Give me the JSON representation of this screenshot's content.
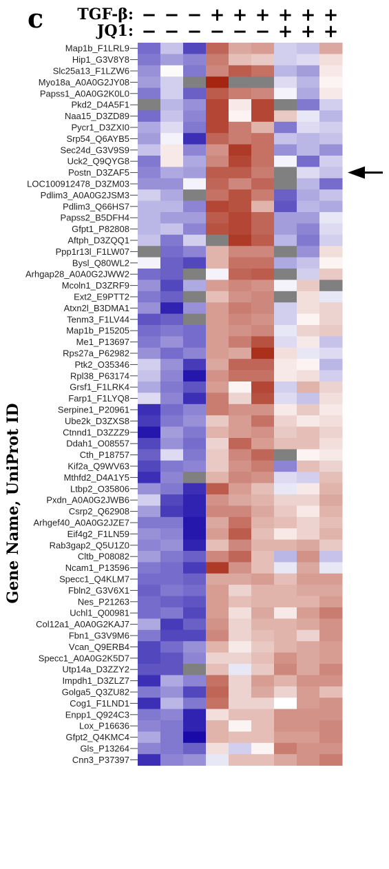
{
  "chart_data": {
    "type": "heatmap",
    "panel_label": "c",
    "ylabel": "Gene Name, UniProt ID",
    "treatments": [
      {
        "label": "TGF-β:",
        "marks": [
          "−",
          "−",
          "−",
          "+",
          "+",
          "+",
          "+",
          "+",
          "+"
        ]
      },
      {
        "label": "JQ1:",
        "marks": [
          "−",
          "−",
          "−",
          "−",
          "−",
          "−",
          "+",
          "+",
          "+"
        ]
      }
    ],
    "color_scale": {
      "low": "#1a0aa8",
      "mid": "#ffffff",
      "high": "#a52510",
      "missing": "#808080"
    },
    "highlighted_row": "Postn_D3ZAF5",
    "rows": [
      {
        "label": "Map1b_F1LRL9",
        "values": [
          -0.6,
          -0.25,
          -0.75,
          0.7,
          0.4,
          0.45,
          -0.2,
          -0.25,
          0.4
        ]
      },
      {
        "label": "Hip1_G3V8Y8",
        "values": [
          -0.55,
          -0.4,
          -0.5,
          0.6,
          0.3,
          0.25,
          -0.2,
          -0.15,
          0.15
        ]
      },
      {
        "label": "Slc25a13_F1LZW6",
        "values": [
          -0.45,
          0.02,
          -0.55,
          0.55,
          0.75,
          0.65,
          -0.3,
          -0.4,
          0.1
        ]
      },
      {
        "label": "Myo18a_A0A0G2JY08",
        "values": [
          -0.4,
          -0.2,
          null,
          1.0,
          null,
          null,
          -0.15,
          -0.3,
          0.05
        ]
      },
      {
        "label": "Papss1_A0A0G2K0L0",
        "values": [
          -0.55,
          -0.2,
          -0.65,
          0.75,
          0.6,
          0.55,
          -0.05,
          -0.35,
          0.1
        ]
      },
      {
        "label": "Pkd2_D4A5F1",
        "values": [
          null,
          -0.3,
          -0.45,
          0.85,
          0.1,
          0.85,
          null,
          -0.55,
          -0.2
        ]
      },
      {
        "label": "Naa15_D3ZD89",
        "values": [
          -0.6,
          -0.25,
          -0.5,
          0.85,
          0.05,
          0.85,
          0.25,
          -0.1,
          -0.3
        ]
      },
      {
        "label": "Pycr1_D3ZXI0",
        "values": [
          -0.35,
          -0.15,
          -0.55,
          0.85,
          0.6,
          0.35,
          -0.55,
          -0.15,
          -0.2
        ]
      },
      {
        "label": "Srp54_Q6AYB5",
        "values": [
          -0.4,
          -0.05,
          -0.85,
          0.7,
          0.6,
          0.65,
          -0.25,
          -0.3,
          -0.25
        ]
      },
      {
        "label": "Sec24d_G3V9S9",
        "values": [
          -0.25,
          0.1,
          -0.5,
          0.5,
          0.9,
          0.65,
          -0.45,
          -0.3,
          -0.45
        ]
      },
      {
        "label": "Uck2_Q9QYG8",
        "values": [
          -0.55,
          0.1,
          -0.35,
          0.55,
          0.85,
          0.65,
          -0.05,
          -0.6,
          -0.2
        ]
      },
      {
        "label": "Postn_D3ZAF5",
        "values": [
          -0.5,
          -0.35,
          -0.4,
          0.75,
          0.75,
          0.6,
          null,
          -0.15,
          -0.25
        ]
      },
      {
        "label": "LOC100912478_D3ZM03",
        "values": [
          -0.45,
          -0.45,
          -0.05,
          0.7,
          0.55,
          0.7,
          null,
          -0.3,
          -0.6
        ]
      },
      {
        "label": "Pdlim3_A0A0G2JSM3",
        "values": [
          -0.2,
          -0.35,
          null,
          0.65,
          0.8,
          0.6,
          -0.65,
          -0.35,
          -0.25
        ]
      },
      {
        "label": "Pdlim3_Q66HS7",
        "values": [
          -0.3,
          -0.3,
          -0.5,
          0.85,
          0.8,
          0.35,
          -0.7,
          -0.3,
          -0.35
        ]
      },
      {
        "label": "Papss2_B5DFH4",
        "values": [
          -0.3,
          -0.4,
          -0.4,
          0.75,
          0.85,
          0.7,
          -0.4,
          -0.4,
          -0.1
        ]
      },
      {
        "label": "Gfpt1_P82808",
        "values": [
          -0.3,
          -0.25,
          -0.5,
          0.8,
          0.85,
          0.7,
          -0.4,
          -0.5,
          -0.15
        ]
      },
      {
        "label": "Aftph_D3ZQQ1",
        "values": [
          -0.25,
          -0.55,
          -0.2,
          null,
          0.9,
          0.75,
          -0.3,
          -0.55,
          -0.2
        ]
      },
      {
        "label": "Ppp1r13l_F1LW07",
        "values": [
          null,
          -0.6,
          -0.5,
          0.35,
          0.55,
          0.55,
          null,
          -0.45,
          0.15
        ]
      },
      {
        "label": "Bysl_Q80WL2",
        "values": [
          -0.05,
          -0.65,
          -0.75,
          0.35,
          0.65,
          0.65,
          -0.35,
          -0.25,
          0.05
        ]
      },
      {
        "label": "Arhgap28_A0A0G2JWW2",
        "values": [
          -0.6,
          -0.65,
          null,
          -0.05,
          0.7,
          0.75,
          null,
          -0.2,
          0.25
        ]
      },
      {
        "label": "Mcoln1_D3ZRF9",
        "values": [
          -0.45,
          -0.75,
          -0.35,
          0.45,
          0.55,
          0.5,
          -0.05,
          0.25,
          null
        ]
      },
      {
        "label": "Ext2_E9PTT2",
        "values": [
          -0.55,
          -0.65,
          null,
          0.3,
          0.5,
          0.55,
          null,
          0.15,
          -0.1
        ]
      },
      {
        "label": "Atxn2l_B3DMA1",
        "values": [
          -0.45,
          -0.9,
          -0.45,
          0.45,
          0.6,
          0.55,
          -0.2,
          0.15,
          0.2
        ]
      },
      {
        "label": "Tenm3_F1LV44",
        "values": [
          -0.7,
          -0.65,
          null,
          0.45,
          0.55,
          0.5,
          -0.2,
          0.05,
          0.2
        ]
      },
      {
        "label": "Map1b_P15205",
        "values": [
          -0.6,
          -0.55,
          -0.6,
          0.45,
          0.5,
          0.55,
          -0.1,
          0.2,
          0.25
        ]
      },
      {
        "label": "Me1_P13697",
        "values": [
          -0.55,
          -0.45,
          -0.6,
          0.45,
          0.6,
          0.8,
          -0.15,
          0.1,
          -0.25
        ]
      },
      {
        "label": "Rps27a_P62982",
        "values": [
          -0.45,
          -0.6,
          -0.5,
          0.45,
          0.4,
          0.95,
          0.15,
          -0.1,
          -0.15
        ]
      },
      {
        "label": "Ptk2_O35346",
        "values": [
          -0.2,
          -0.45,
          -0.8,
          0.4,
          0.7,
          0.7,
          0.1,
          0.05,
          -0.3
        ]
      },
      {
        "label": "Rpl38_P63174",
        "values": [
          -0.25,
          -0.5,
          -0.95,
          0.5,
          0.65,
          0.65,
          0.1,
          0.15,
          -0.2
        ]
      },
      {
        "label": "Grsf1_F1LRK4",
        "values": [
          -0.35,
          -0.55,
          -0.7,
          0.45,
          0.05,
          0.85,
          -0.2,
          0.35,
          0.2
        ]
      },
      {
        "label": "Farp1_F1LYQ8",
        "values": [
          -0.15,
          -0.5,
          -0.85,
          0.6,
          0.2,
          0.8,
          -0.15,
          -0.25,
          0.15
        ]
      },
      {
        "label": "Serpine1_P20961",
        "values": [
          -0.85,
          -0.6,
          -0.5,
          0.6,
          0.5,
          0.5,
          0.1,
          0.25,
          0.1
        ]
      },
      {
        "label": "Ube2k_D3ZXS8",
        "values": [
          -0.8,
          -0.55,
          -0.45,
          0.25,
          0.45,
          0.65,
          0.2,
          0.1,
          0.15
        ]
      },
      {
        "label": "Ctnnd1_D3ZZZ9",
        "values": [
          -0.95,
          -0.4,
          -0.55,
          0.35,
          0.45,
          0.5,
          0.25,
          0.3,
          0.2
        ]
      },
      {
        "label": "Ddah1_O08557",
        "values": [
          -0.75,
          -0.45,
          -0.6,
          0.2,
          0.7,
          0.45,
          0.3,
          0.3,
          0.15
        ]
      },
      {
        "label": "Cth_P18757",
        "values": [
          -0.65,
          -0.15,
          -0.55,
          0.25,
          0.55,
          0.7,
          null,
          0.05,
          0.1
        ]
      },
      {
        "label": "Kif2a_Q9WV63",
        "values": [
          -0.75,
          -0.55,
          -0.5,
          0.25,
          0.5,
          0.6,
          -0.5,
          0.3,
          0.2
        ]
      },
      {
        "label": "Mthfd2_D4A1Y5",
        "values": [
          -0.85,
          -0.5,
          null,
          0.35,
          0.55,
          0.5,
          -0.15,
          -0.2,
          0.3
        ]
      },
      {
        "label": "Ltbp2_O35806",
        "values": [
          -0.45,
          -0.55,
          -0.85,
          0.75,
          0.45,
          0.3,
          -0.1,
          0.1,
          0.35
        ]
      },
      {
        "label": "Pxdn_A0A0G2JWB6",
        "values": [
          -0.2,
          -0.75,
          -0.9,
          0.5,
          0.4,
          0.35,
          0.2,
          0.2,
          0.4
        ]
      },
      {
        "label": "Csrp2_Q62908",
        "values": [
          -0.4,
          -0.8,
          -0.9,
          0.55,
          0.55,
          0.4,
          0.25,
          0.1,
          0.35
        ]
      },
      {
        "label": "Arhgef40_A0A0G2JZE7",
        "values": [
          -0.55,
          -0.55,
          -0.95,
          0.4,
          0.65,
          0.35,
          0.3,
          0.2,
          0.3
        ]
      },
      {
        "label": "Eif4g2_F1LN59",
        "values": [
          -0.45,
          -0.5,
          -0.95,
          0.45,
          0.75,
          0.3,
          0.1,
          0.2,
          0.35
        ]
      },
      {
        "label": "Rab3gap2_Q5U1Z0",
        "values": [
          -0.5,
          -0.45,
          -0.9,
          0.3,
          0.55,
          0.35,
          0.35,
          0.4,
          0.25
        ]
      },
      {
        "label": "Cltb_P08082",
        "values": [
          -0.4,
          -0.55,
          -0.65,
          0.55,
          0.7,
          0.3,
          -0.3,
          0.5,
          -0.25
        ]
      },
      {
        "label": "Ncam1_P13596",
        "values": [
          -0.55,
          -0.6,
          -0.8,
          0.9,
          0.5,
          0.3,
          -0.1,
          0.4,
          -0.1
        ]
      },
      {
        "label": "Specc1_Q4KLM7",
        "values": [
          -0.6,
          -0.6,
          -0.65,
          0.4,
          0.4,
          0.45,
          0.3,
          0.45,
          0.45
        ]
      },
      {
        "label": "Fbln2_G3V6X1",
        "values": [
          -0.65,
          -0.55,
          -0.6,
          0.45,
          0.2,
          0.35,
          0.35,
          0.4,
          0.4
        ]
      },
      {
        "label": "Nes_P21263",
        "values": [
          -0.6,
          -0.65,
          -0.7,
          0.45,
          0.3,
          0.35,
          0.35,
          0.35,
          0.45
        ]
      },
      {
        "label": "Uchl1_Q00981",
        "values": [
          -0.6,
          -0.55,
          -0.75,
          0.45,
          0.15,
          0.4,
          0.1,
          0.45,
          0.6
        ]
      },
      {
        "label": "Col12a1_A0A0G2KAJ7",
        "values": [
          -0.35,
          -0.8,
          -0.65,
          0.5,
          0.2,
          0.35,
          0.35,
          0.4,
          0.5
        ]
      },
      {
        "label": "Fbn1_G3V9M6",
        "values": [
          -0.55,
          -0.75,
          -0.75,
          0.55,
          0.2,
          0.3,
          0.35,
          0.2,
          0.5
        ]
      },
      {
        "label": "Vcan_Q9ERB4",
        "values": [
          -0.75,
          -0.6,
          -0.45,
          0.35,
          0.1,
          0.25,
          0.35,
          0.4,
          0.45
        ]
      },
      {
        "label": "Specc1_A0A0G2K5D7",
        "values": [
          -0.75,
          -0.7,
          -0.5,
          0.2,
          0.2,
          0.3,
          0.5,
          0.4,
          0.45
        ]
      },
      {
        "label": "Utp14a_D3ZZY2",
        "values": [
          -0.7,
          -0.7,
          null,
          0.3,
          -0.1,
          0.25,
          0.55,
          0.4,
          0.55
        ]
      },
      {
        "label": "Impdh1_D3ZLZ7",
        "values": [
          -0.85,
          -0.35,
          -0.5,
          0.65,
          0.2,
          0.45,
          0.35,
          0.5,
          0.5
        ]
      },
      {
        "label": "Golga5_Q3ZU82",
        "values": [
          -0.55,
          -0.45,
          -0.75,
          0.7,
          0.2,
          0.4,
          0.2,
          0.45,
          0.3
        ]
      },
      {
        "label": "Cog1_F1LND1",
        "values": [
          -0.85,
          -0.3,
          -0.55,
          0.65,
          0.2,
          0.2,
          0.0,
          0.45,
          0.5
        ]
      },
      {
        "label": "Enpp1_Q924C3",
        "values": [
          -0.55,
          -0.5,
          -0.9,
          0.15,
          0.3,
          0.3,
          0.5,
          0.5,
          0.5
        ]
      },
      {
        "label": "Lox_P16636",
        "values": [
          -0.5,
          -0.55,
          -0.9,
          0.35,
          0.05,
          0.3,
          0.5,
          0.5,
          0.55
        ]
      },
      {
        "label": "Gfpt2_Q4KMC4",
        "values": [
          -0.35,
          -0.55,
          -1.0,
          0.35,
          0.3,
          0.3,
          0.45,
          0.45,
          0.55
        ]
      },
      {
        "label": "Gls_P13264",
        "values": [
          -0.5,
          -0.55,
          -0.65,
          0.15,
          -0.2,
          0.05,
          0.6,
          0.5,
          0.5
        ]
      },
      {
        "label": "Cnn3_P37397",
        "values": [
          -0.85,
          -0.5,
          -0.45,
          -0.1,
          0.3,
          0.3,
          0.4,
          0.5,
          0.6
        ]
      }
    ]
  }
}
